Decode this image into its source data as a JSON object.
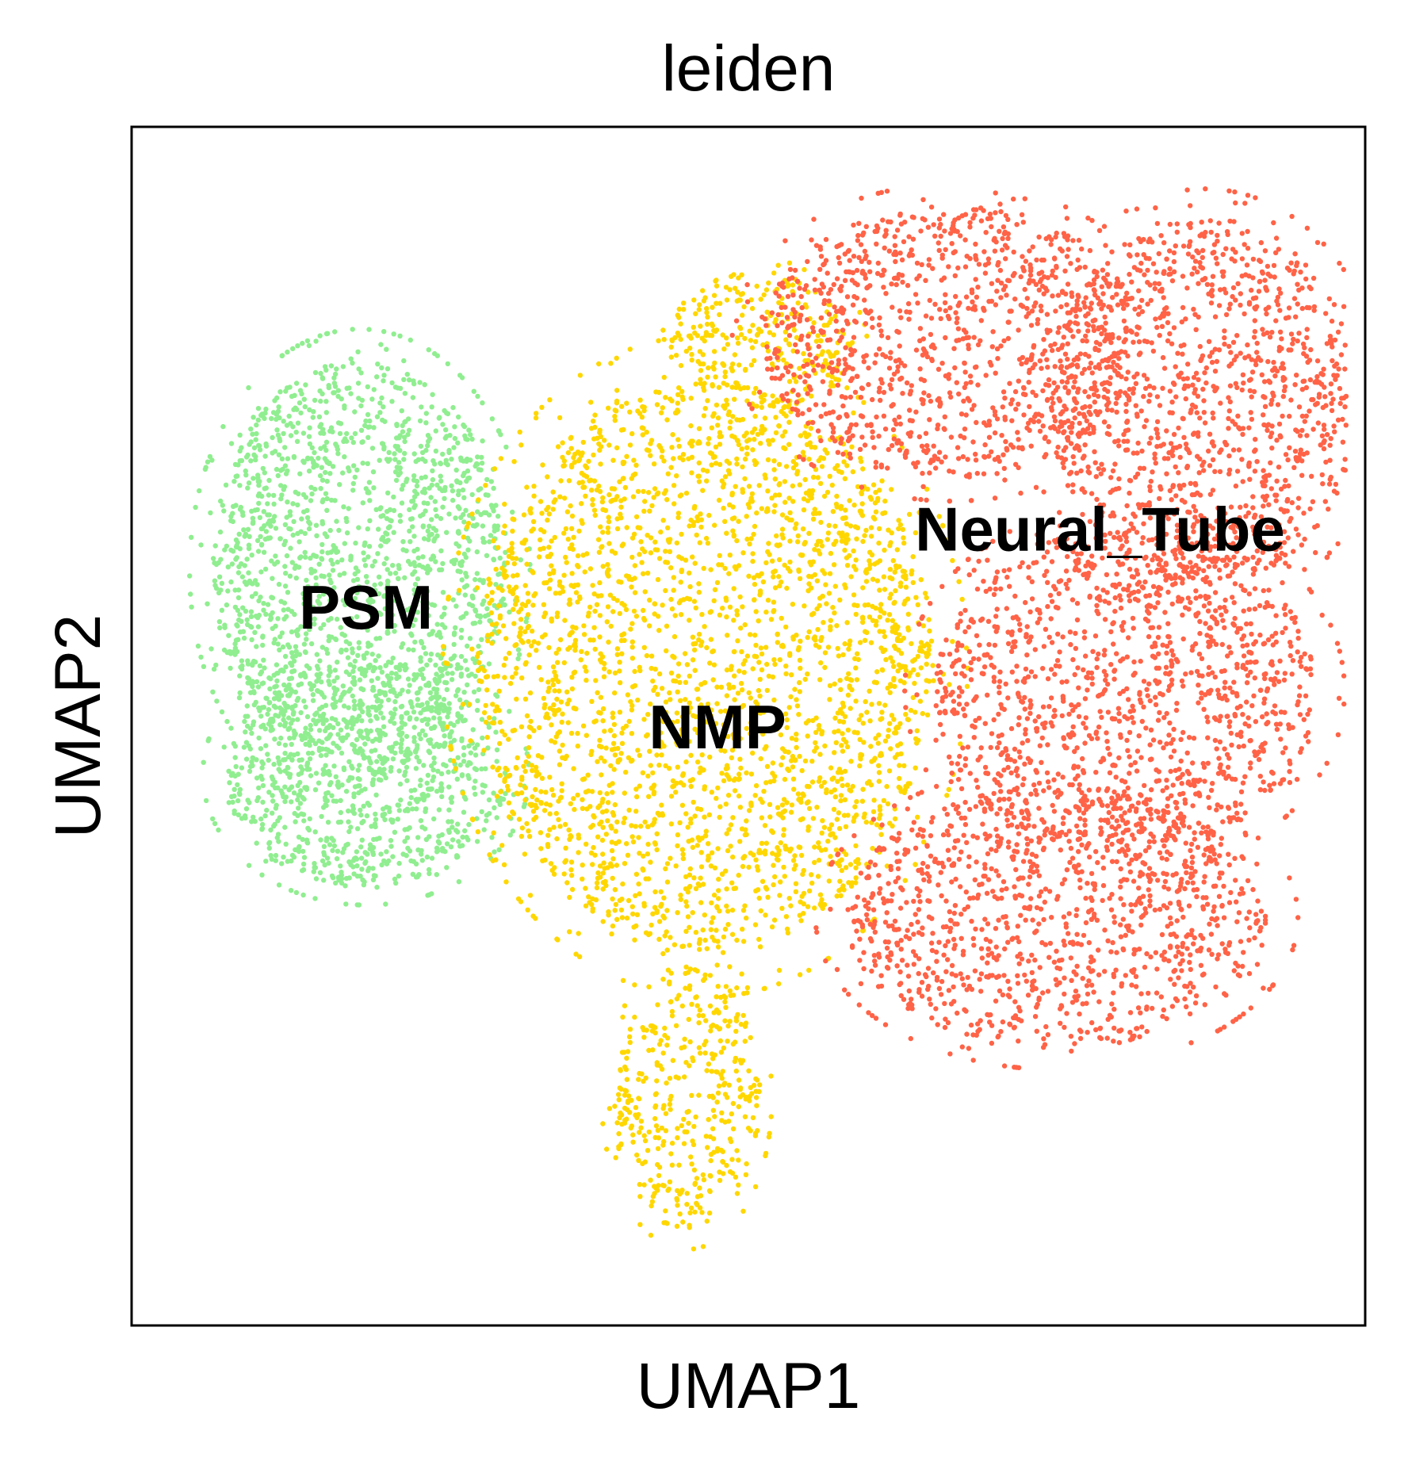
{
  "chart_data": {
    "type": "scatter",
    "title": "leiden",
    "xlabel": "UMAP1",
    "ylabel": "UMAP2",
    "xticks": [],
    "yticks": [],
    "xlim": [
      0,
      10
    ],
    "ylim": [
      0,
      10
    ],
    "grid": false,
    "legend": "on data",
    "series": [
      {
        "name": "PSM",
        "color": "#90EE90",
        "n_points": 2600,
        "label_at": [
          1.9,
          5.95
        ],
        "regions": [
          {
            "cx": 1.85,
            "cy": 6.3,
            "rx": 1.2,
            "ry": 1.75
          },
          {
            "cx": 1.9,
            "cy": 4.6,
            "rx": 1.15,
            "ry": 0.95
          }
        ]
      },
      {
        "name": "NMP",
        "color": "#FFD700",
        "n_points": 3400,
        "label_at": [
          4.75,
          4.95
        ],
        "regions": [
          {
            "cx": 4.65,
            "cy": 5.5,
            "rx": 1.85,
            "ry": 2.4
          },
          {
            "cx": 4.5,
            "cy": 1.9,
            "rx": 0.6,
            "ry": 1.1
          },
          {
            "cx": 5.1,
            "cy": 8.2,
            "rx": 0.75,
            "ry": 0.6
          }
        ]
      },
      {
        "name": "Neural_Tube",
        "color": "#FF6347",
        "n_points": 4800,
        "label_at": [
          7.85,
          6.6
        ],
        "regions": [
          {
            "cx": 6.65,
            "cy": 8.2,
            "rx": 1.55,
            "ry": 1.15
          },
          {
            "cx": 8.7,
            "cy": 7.7,
            "rx": 1.25,
            "ry": 1.55
          },
          {
            "cx": 8.05,
            "cy": 5.3,
            "rx": 1.55,
            "ry": 1.35
          },
          {
            "cx": 7.5,
            "cy": 3.4,
            "rx": 1.7,
            "ry": 1.1
          }
        ]
      }
    ]
  }
}
